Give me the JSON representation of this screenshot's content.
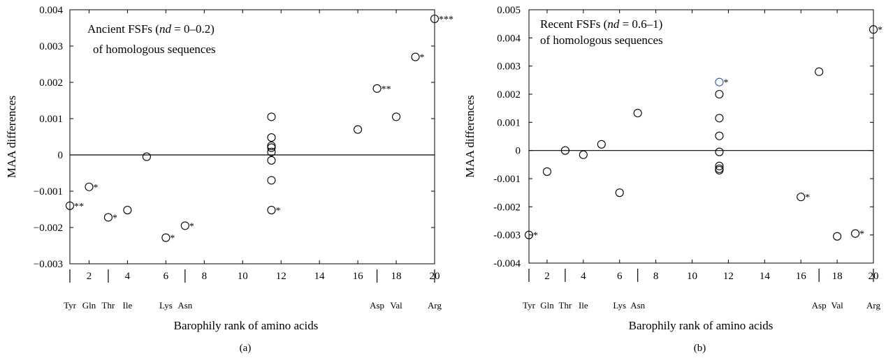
{
  "chart_data": [
    {
      "type": "scatter",
      "panel_label": "(a)",
      "annotation_lines": [
        {
          "parts": [
            {
              "t": "Ancient FSFs ("
            },
            {
              "t": "nd",
              "i": true
            },
            {
              "t": " = 0–0.2)"
            }
          ]
        },
        {
          "parts": [
            {
              "t": "of homologous sequences"
            }
          ]
        }
      ],
      "xlabel": "Barophily rank of amino acids",
      "ylabel": "MAA differences",
      "xlim": [
        1,
        20
      ],
      "ylim": [
        -0.003,
        0.004
      ],
      "xticks": [
        2,
        4,
        6,
        8,
        10,
        12,
        14,
        16,
        18,
        20
      ],
      "yticks": [
        -0.003,
        -0.002,
        -0.001,
        0,
        0.001,
        0.002,
        0.003,
        0.004
      ],
      "ytick_labels": [
        "−0.003",
        "−0.002",
        "−0.001",
        "0",
        "0.001",
        "0.002",
        "0.003",
        "0.004"
      ],
      "zero_line": true,
      "group_separators": [
        1,
        3,
        7,
        17,
        20
      ],
      "amino_acid_labels": [
        {
          "x": 1,
          "label": "Tyr"
        },
        {
          "x": 2,
          "label": "Gln"
        },
        {
          "x": 3,
          "label": "Thr"
        },
        {
          "x": 4,
          "label": "Ile"
        },
        {
          "x": 6,
          "label": "Lys"
        },
        {
          "x": 7,
          "label": "Asn"
        },
        {
          "x": 17,
          "label": "Asp"
        },
        {
          "x": 18,
          "label": "Val"
        },
        {
          "x": 20,
          "label": "Arg"
        }
      ],
      "points": [
        {
          "x": 1,
          "y": -0.0014,
          "sig": "**"
        },
        {
          "x": 2,
          "y": -0.00088,
          "sig": "*"
        },
        {
          "x": 3,
          "y": -0.00172,
          "sig": "*"
        },
        {
          "x": 4,
          "y": -0.00152,
          "sig": ""
        },
        {
          "x": 5,
          "y": -5e-05,
          "sig": ""
        },
        {
          "x": 6,
          "y": -0.00228,
          "sig": "*"
        },
        {
          "x": 7,
          "y": -0.00195,
          "sig": "*"
        },
        {
          "x": 11.5,
          "y": 0.00105,
          "sig": ""
        },
        {
          "x": 11.5,
          "y": 0.00048,
          "sig": ""
        },
        {
          "x": 11.5,
          "y": 0.00025,
          "sig": ""
        },
        {
          "x": 11.5,
          "y": 0.0002,
          "sig": ""
        },
        {
          "x": 11.5,
          "y": 8e-05,
          "sig": ""
        },
        {
          "x": 11.5,
          "y": -0.00015,
          "sig": ""
        },
        {
          "x": 11.5,
          "y": -0.0007,
          "sig": ""
        },
        {
          "x": 11.5,
          "y": -0.00152,
          "sig": "*"
        },
        {
          "x": 16,
          "y": 0.0007,
          "sig": ""
        },
        {
          "x": 17,
          "y": 0.00183,
          "sig": "**"
        },
        {
          "x": 18,
          "y": 0.00105,
          "sig": ""
        },
        {
          "x": 19,
          "y": 0.0027,
          "sig": "*"
        },
        {
          "x": 20,
          "y": 0.00375,
          "sig": "***"
        }
      ]
    },
    {
      "type": "scatter",
      "panel_label": "(b)",
      "annotation_lines": [
        {
          "parts": [
            {
              "t": "Recent FSFs ("
            },
            {
              "t": "nd",
              "i": true
            },
            {
              "t": " = 0.6–1)"
            }
          ]
        },
        {
          "parts": [
            {
              "t": "of homologous sequences"
            }
          ]
        }
      ],
      "xlabel": "Barophily rank of amino acids",
      "ylabel": "MAA differences",
      "xlim": [
        1,
        20
      ],
      "ylim": [
        -0.004,
        0.005
      ],
      "xticks": [
        2,
        4,
        6,
        8,
        10,
        12,
        14,
        16,
        18,
        20
      ],
      "yticks": [
        -0.004,
        -0.003,
        -0.002,
        -0.001,
        0,
        0.001,
        0.002,
        0.003,
        0.004,
        0.005
      ],
      "ytick_labels": [
        "-0.004",
        "-0.003",
        "-0.002",
        "-0.001",
        "0",
        "0.001",
        "0.002",
        "0.003",
        "0.004",
        "0.005"
      ],
      "zero_line": true,
      "group_separators": [
        1,
        3,
        7,
        17,
        20
      ],
      "amino_acid_labels": [
        {
          "x": 1,
          "label": "Tyr"
        },
        {
          "x": 2,
          "label": "Gln"
        },
        {
          "x": 3,
          "label": "Thr"
        },
        {
          "x": 4,
          "label": "Ile"
        },
        {
          "x": 6,
          "label": "Lys"
        },
        {
          "x": 7,
          "label": "Asn"
        },
        {
          "x": 17,
          "label": "Asp"
        },
        {
          "x": 18,
          "label": "Val"
        },
        {
          "x": 20,
          "label": "Arg"
        }
      ],
      "points": [
        {
          "x": 1,
          "y": -0.003,
          "sig": "*"
        },
        {
          "x": 2,
          "y": -0.00075,
          "sig": ""
        },
        {
          "x": 3,
          "y": 0.0,
          "sig": ""
        },
        {
          "x": 4,
          "y": -0.00015,
          "sig": ""
        },
        {
          "x": 5,
          "y": 0.00022,
          "sig": ""
        },
        {
          "x": 6,
          "y": -0.0015,
          "sig": ""
        },
        {
          "x": 7,
          "y": 0.00133,
          "sig": ""
        },
        {
          "x": 11.5,
          "y": 0.00243,
          "sig": "*",
          "color": "#3b5ba5"
        },
        {
          "x": 11.5,
          "y": 0.002,
          "sig": ""
        },
        {
          "x": 11.5,
          "y": 0.00115,
          "sig": ""
        },
        {
          "x": 11.5,
          "y": 0.00052,
          "sig": ""
        },
        {
          "x": 11.5,
          "y": -5e-05,
          "sig": ""
        },
        {
          "x": 11.5,
          "y": -0.00055,
          "sig": ""
        },
        {
          "x": 11.5,
          "y": -0.00065,
          "sig": ""
        },
        {
          "x": 11.5,
          "y": -0.0007,
          "sig": ""
        },
        {
          "x": 16,
          "y": -0.00165,
          "sig": "*"
        },
        {
          "x": 17,
          "y": 0.0028,
          "sig": ""
        },
        {
          "x": 18,
          "y": -0.00305,
          "sig": ""
        },
        {
          "x": 19,
          "y": -0.00295,
          "sig": "*"
        },
        {
          "x": 20,
          "y": 0.0043,
          "sig": "*"
        }
      ]
    }
  ]
}
